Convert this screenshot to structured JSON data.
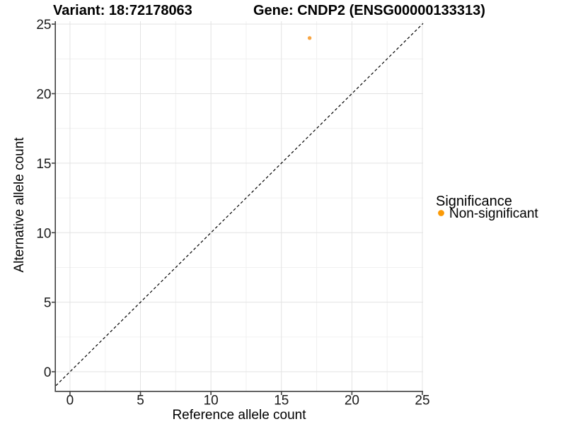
{
  "figure": {
    "background": "#FFFFFF"
  },
  "chart_data": {
    "type": "scatter",
    "titles": {
      "left": "Variant: 18:72178063",
      "right": "Gene: CNDP2 (ENSG00000133313)"
    },
    "xlabel": "Reference allele count",
    "ylabel": "Alternative allele count",
    "x_ticks": [
      0,
      5,
      10,
      15,
      20,
      25
    ],
    "y_ticks": [
      0,
      5,
      10,
      15,
      20,
      25
    ],
    "x_minor_ticks": [
      2.5,
      7.5,
      12.5,
      17.5,
      22.5
    ],
    "y_minor_ticks": [
      2.5,
      7.5,
      12.5,
      17.5,
      22.5
    ],
    "xlim": [
      -1.0,
      25.05
    ],
    "ylim": [
      -1.37,
      25.21
    ],
    "grid": "major+minor",
    "points": [
      {
        "x": 17,
        "y": 24,
        "series": "Non-significant"
      }
    ],
    "reference_line": {
      "kind": "identity",
      "style": "dashed",
      "equation": "y = x"
    },
    "legend": {
      "title": "Significance",
      "position": "right",
      "entries": [
        {
          "label": "Non-significant",
          "color": "#FB9A06",
          "marker": "circle"
        }
      ]
    },
    "colors": {
      "point": "#F8A543",
      "grid_major": "#E3E3E3",
      "grid_minor": "#F0F0F0",
      "axis_line": "#404040",
      "tick_label": "#1A1A1A",
      "title_text": "#000000",
      "reference_line": "#000000"
    }
  }
}
